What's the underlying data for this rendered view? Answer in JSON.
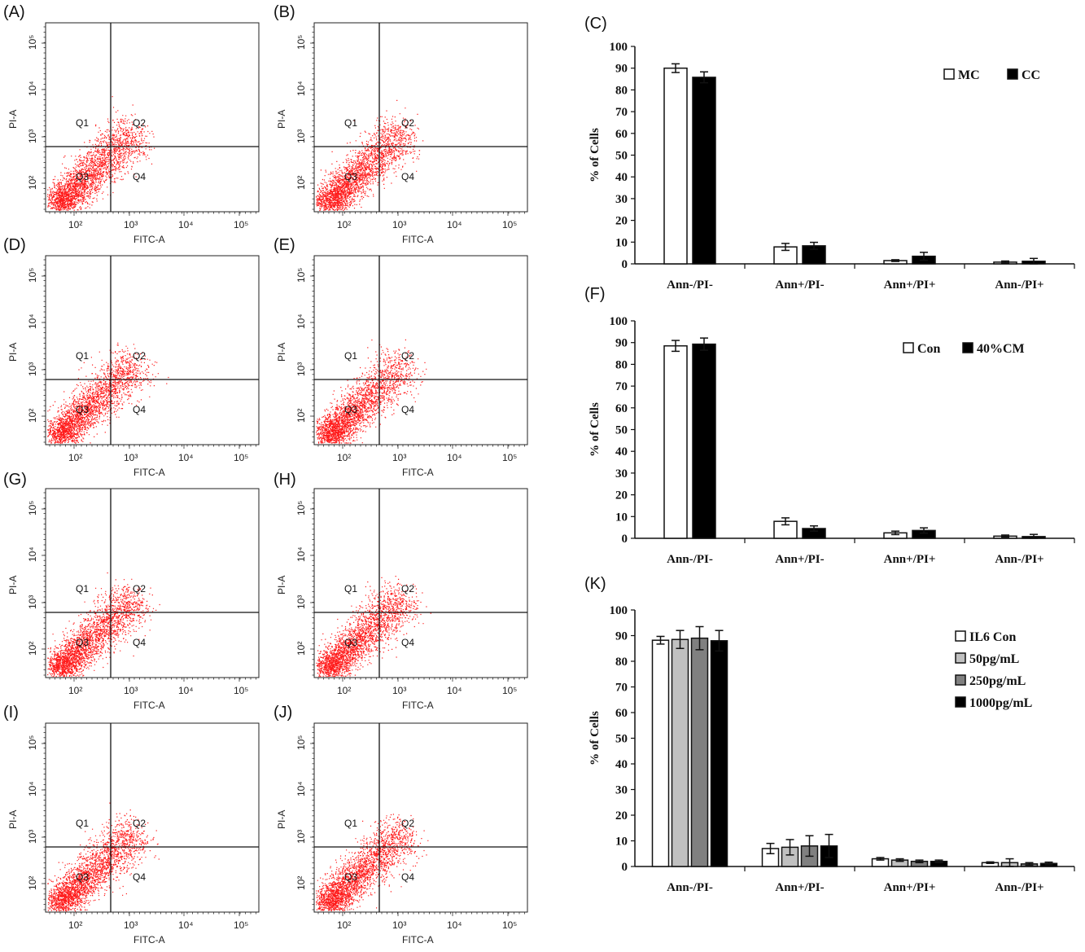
{
  "panel_labels": {
    "A": "(A)",
    "B": "(B)",
    "C": "(C)",
    "D": "(D)",
    "E": "(E)",
    "F": "(F)",
    "G": "(G)",
    "H": "(H)",
    "I": "(I)",
    "J": "(J)",
    "K": "(K)"
  },
  "flow_plots": {
    "x_axis_label": "FITC-A",
    "y_axis_label": "PI-A",
    "tick_labels": [
      "10²",
      "10³",
      "10⁴",
      "10⁵"
    ],
    "quadrants": [
      "Q1",
      "Q2",
      "Q3",
      "Q4"
    ],
    "dot_color": "#ff1a1a",
    "panels": [
      "A",
      "B",
      "D",
      "E",
      "G",
      "H",
      "I",
      "J"
    ]
  },
  "chart_data": [
    {
      "panel": "C",
      "type": "bar",
      "categories": [
        "Ann-/PI-",
        "Ann+/PI-",
        "Ann+/PI+",
        "Ann-/PI+"
      ],
      "ylabel": "% of Cells",
      "ylim": [
        0,
        100
      ],
      "yticks": [
        0,
        10,
        20,
        30,
        40,
        50,
        60,
        70,
        80,
        90,
        100
      ],
      "legend_position": "top-right",
      "series": [
        {
          "name": "MC",
          "color": "#ffffff",
          "values": [
            90,
            7.8,
            1.5,
            0.8
          ],
          "errors": [
            2,
            1.6,
            0.4,
            0.5
          ]
        },
        {
          "name": "CC",
          "color": "#000000",
          "values": [
            85.8,
            8.3,
            3.5,
            1.2
          ],
          "errors": [
            2.5,
            1.6,
            1.8,
            1.3
          ]
        }
      ]
    },
    {
      "panel": "F",
      "type": "bar",
      "categories": [
        "Ann-/PI-",
        "Ann+/PI-",
        "Ann+/PI+",
        "Ann-/PI+"
      ],
      "ylabel": "% of Cells",
      "ylim": [
        0,
        100
      ],
      "yticks": [
        0,
        10,
        20,
        30,
        40,
        50,
        60,
        70,
        80,
        90,
        100
      ],
      "legend_position": "top-right",
      "series": [
        {
          "name": "Con",
          "color": "#ffffff",
          "values": [
            88.5,
            7.8,
            2.5,
            1.0
          ],
          "errors": [
            2.5,
            1.6,
            0.8,
            0.5
          ]
        },
        {
          "name": "40%CM",
          "color": "#000000",
          "values": [
            89.3,
            4.5,
            3.6,
            0.8
          ],
          "errors": [
            2.8,
            1.2,
            1.2,
            1.0
          ]
        }
      ]
    },
    {
      "panel": "K",
      "type": "bar",
      "categories": [
        "Ann-/PI-",
        "Ann+/PI-",
        "Ann+/PI+",
        "Ann-/PI+"
      ],
      "ylabel": "% of Cells",
      "ylim": [
        0,
        100
      ],
      "yticks": [
        0,
        10,
        20,
        30,
        40,
        50,
        60,
        70,
        80,
        90,
        100
      ],
      "legend_position": "top-right",
      "series": [
        {
          "name": "IL6 Con",
          "color": "#ffffff",
          "values": [
            88.2,
            7.0,
            3.0,
            1.5
          ],
          "errors": [
            1.5,
            2.0,
            0.5,
            0.3
          ]
        },
        {
          "name": "50pg/mL",
          "color": "#c0c0c0",
          "values": [
            88.5,
            7.5,
            2.5,
            1.5
          ],
          "errors": [
            3.5,
            3.0,
            0.5,
            1.5
          ]
        },
        {
          "name": "250pg/mL",
          "color": "#808080",
          "values": [
            89.0,
            8.0,
            2.0,
            1.0
          ],
          "errors": [
            4.5,
            4.0,
            0.5,
            0.5
          ]
        },
        {
          "name": "1000pg/mL",
          "color": "#000000",
          "values": [
            88.0,
            8.0,
            2.0,
            1.2
          ],
          "errors": [
            4.0,
            4.5,
            0.5,
            0.5
          ]
        }
      ]
    }
  ]
}
